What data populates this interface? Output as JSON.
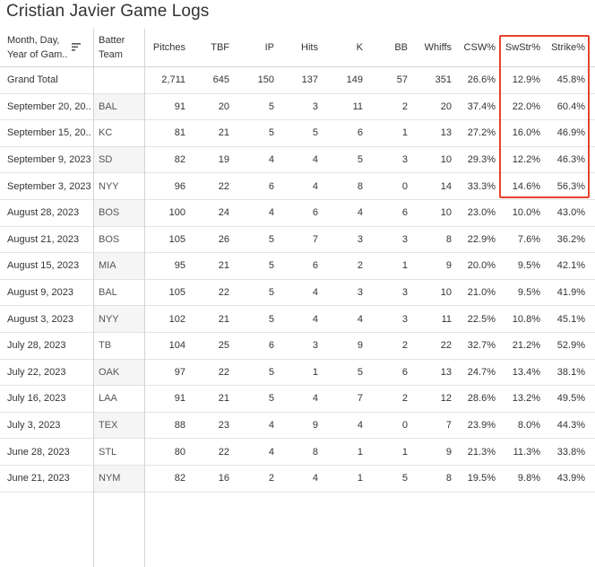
{
  "title": "Cristian Javier Game Logs",
  "columns": {
    "date_line1": "Month, Day,",
    "date_line2": "Year of Gam..",
    "team_line1": "Batter",
    "team_line2": "Team",
    "pitches": "Pitches",
    "tbf": "TBF",
    "ip": "IP",
    "hits": "Hits",
    "k": "K",
    "bb": "BB",
    "whiffs": "Whiffs",
    "csw": "CSW%",
    "swstr": "SwStr%",
    "strike": "Strike%"
  },
  "grand_total": {
    "label": "Grand Total",
    "pitches": "2,711",
    "tbf": "645",
    "ip": "150",
    "hits": "137",
    "k": "149",
    "bb": "57",
    "whiffs": "351",
    "csw": "26.6%",
    "swstr": "12.9%",
    "strike": "45.8%"
  },
  "rows": [
    {
      "date": "September 20, 20..",
      "team": "BAL",
      "pitches": "91",
      "tbf": "20",
      "ip": "5",
      "hits": "3",
      "k": "11",
      "bb": "2",
      "whiffs": "20",
      "csw": "37.4%",
      "swstr": "22.0%",
      "strike": "60.4%"
    },
    {
      "date": "September 15, 20..",
      "team": "KC",
      "pitches": "81",
      "tbf": "21",
      "ip": "5",
      "hits": "5",
      "k": "6",
      "bb": "1",
      "whiffs": "13",
      "csw": "27.2%",
      "swstr": "16.0%",
      "strike": "46.9%"
    },
    {
      "date": "September 9, 2023",
      "team": "SD",
      "pitches": "82",
      "tbf": "19",
      "ip": "4",
      "hits": "4",
      "k": "5",
      "bb": "3",
      "whiffs": "10",
      "csw": "29.3%",
      "swstr": "12.2%",
      "strike": "46.3%"
    },
    {
      "date": "September 3, 2023",
      "team": "NYY",
      "pitches": "96",
      "tbf": "22",
      "ip": "6",
      "hits": "4",
      "k": "8",
      "bb": "0",
      "whiffs": "14",
      "csw": "33.3%",
      "swstr": "14.6%",
      "strike": "56.3%"
    },
    {
      "date": "August 28, 2023",
      "team": "BOS",
      "pitches": "100",
      "tbf": "24",
      "ip": "4",
      "hits": "6",
      "k": "4",
      "bb": "6",
      "whiffs": "10",
      "csw": "23.0%",
      "swstr": "10.0%",
      "strike": "43.0%"
    },
    {
      "date": "August 21, 2023",
      "team": "BOS",
      "pitches": "105",
      "tbf": "26",
      "ip": "5",
      "hits": "7",
      "k": "3",
      "bb": "3",
      "whiffs": "8",
      "csw": "22.9%",
      "swstr": "7.6%",
      "strike": "36.2%"
    },
    {
      "date": "August 15, 2023",
      "team": "MIA",
      "pitches": "95",
      "tbf": "21",
      "ip": "5",
      "hits": "6",
      "k": "2",
      "bb": "1",
      "whiffs": "9",
      "csw": "20.0%",
      "swstr": "9.5%",
      "strike": "42.1%"
    },
    {
      "date": "August 9, 2023",
      "team": "BAL",
      "pitches": "105",
      "tbf": "22",
      "ip": "5",
      "hits": "4",
      "k": "3",
      "bb": "3",
      "whiffs": "10",
      "csw": "21.0%",
      "swstr": "9.5%",
      "strike": "41.9%"
    },
    {
      "date": "August 3, 2023",
      "team": "NYY",
      "pitches": "102",
      "tbf": "21",
      "ip": "5",
      "hits": "4",
      "k": "4",
      "bb": "3",
      "whiffs": "11",
      "csw": "22.5%",
      "swstr": "10.8%",
      "strike": "45.1%"
    },
    {
      "date": "July 28, 2023",
      "team": "TB",
      "pitches": "104",
      "tbf": "25",
      "ip": "6",
      "hits": "3",
      "k": "9",
      "bb": "2",
      "whiffs": "22",
      "csw": "32.7%",
      "swstr": "21.2%",
      "strike": "52.9%"
    },
    {
      "date": "July 22, 2023",
      "team": "OAK",
      "pitches": "97",
      "tbf": "22",
      "ip": "5",
      "hits": "1",
      "k": "5",
      "bb": "6",
      "whiffs": "13",
      "csw": "24.7%",
      "swstr": "13.4%",
      "strike": "38.1%"
    },
    {
      "date": "July 16, 2023",
      "team": "LAA",
      "pitches": "91",
      "tbf": "21",
      "ip": "5",
      "hits": "4",
      "k": "7",
      "bb": "2",
      "whiffs": "12",
      "csw": "28.6%",
      "swstr": "13.2%",
      "strike": "49.5%"
    },
    {
      "date": "July 3, 2023",
      "team": "TEX",
      "pitches": "88",
      "tbf": "23",
      "ip": "4",
      "hits": "9",
      "k": "4",
      "bb": "0",
      "whiffs": "7",
      "csw": "23.9%",
      "swstr": "8.0%",
      "strike": "44.3%"
    },
    {
      "date": "June 28, 2023",
      "team": "STL",
      "pitches": "80",
      "tbf": "22",
      "ip": "4",
      "hits": "8",
      "k": "1",
      "bb": "1",
      "whiffs": "9",
      "csw": "21.3%",
      "swstr": "11.3%",
      "strike": "33.8%"
    },
    {
      "date": "June 21, 2023",
      "team": "NYM",
      "pitches": "82",
      "tbf": "16",
      "ip": "2",
      "hits": "4",
      "k": "1",
      "bb": "5",
      "whiffs": "8",
      "csw": "19.5%",
      "swstr": "9.8%",
      "strike": "43.9%"
    }
  ],
  "colors": {
    "highlight": "#e8412c",
    "text": "#333333",
    "stripe": "#f5f5f5"
  },
  "icons": {
    "sort": "sort-descending-icon"
  }
}
